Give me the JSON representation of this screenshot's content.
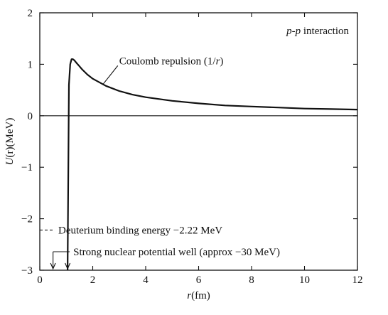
{
  "chart_data": {
    "type": "line",
    "xlabel_var": "r",
    "xlabel_unit": "(fm)",
    "ylabel_var": "U",
    "ylabel_arg": "(r)",
    "ylabel_unit": "(MeV)",
    "xlim": [
      0,
      12
    ],
    "ylim": [
      -3,
      2
    ],
    "x_ticks": [
      0,
      2,
      4,
      6,
      8,
      10,
      12
    ],
    "y_ticks": [
      2,
      1,
      0,
      -1,
      -2,
      -3
    ],
    "y_tick_labels": [
      "2",
      "1",
      "0",
      "−1",
      "−2",
      "−3"
    ],
    "grid": false,
    "zero_line": true,
    "series": [
      {
        "name": "Coulomb repulsion (1/r)",
        "x": [
          1.05,
          1.1,
          1.15,
          1.2,
          1.25,
          1.3,
          1.4,
          1.5,
          1.6,
          1.8,
          2.0,
          2.5,
          3.0,
          3.5,
          4.0,
          5.0,
          6.0,
          7.0,
          8.0,
          9.0,
          10.0,
          11.0,
          12.0
        ],
        "y": [
          -3,
          0.6,
          1.0,
          1.1,
          1.1,
          1.08,
          1.02,
          0.96,
          0.9,
          0.8,
          0.72,
          0.58,
          0.48,
          0.41,
          0.36,
          0.29,
          0.24,
          0.2,
          0.18,
          0.16,
          0.14,
          0.13,
          0.12
        ]
      }
    ],
    "annotations": {
      "interaction": {
        "pre": "p",
        "mid": "-",
        "post": "p",
        "suffix": " interaction"
      },
      "coulomb": {
        "pre": "Coulomb repulsion (1/",
        "var": "r",
        "post": ")"
      },
      "deuterium": "Deuterium binding energy −2.22 MeV",
      "strong_well": "Strong nuclear potential well (approx −30 MeV)"
    },
    "deuterium_energy": -2.22,
    "well_edges": [
      0.5,
      1.05
    ]
  }
}
